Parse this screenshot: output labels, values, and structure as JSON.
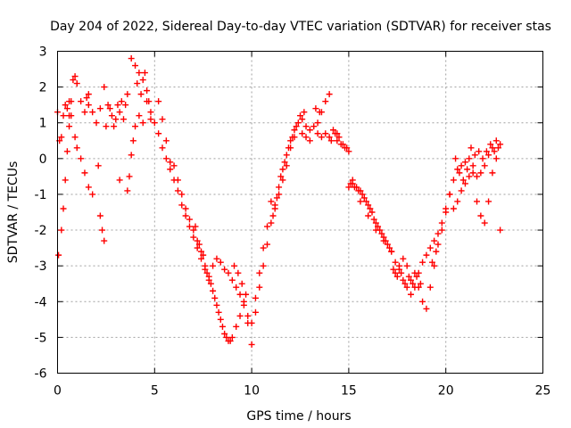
{
  "chart_data": {
    "type": "scatter",
    "title": "Day 204 of 2022, Sidereal Day-to-day VTEC variation (SDTVAR) for receiver stas",
    "xlabel": "GPS time / hours",
    "ylabel": "SDTVAR / TECUs",
    "xlim": [
      0,
      25
    ],
    "ylim": [
      -6,
      3
    ],
    "xticks": [
      0,
      5,
      10,
      15,
      20,
      25
    ],
    "yticks": [
      -6,
      -5,
      -4,
      -3,
      -2,
      -1,
      0,
      1,
      2,
      3
    ],
    "grid": true,
    "marker": "+",
    "series": [
      {
        "name": "stas",
        "color": "#ff0000",
        "points": [
          [
            0.0,
            1.3
          ],
          [
            0.1,
            0.5
          ],
          [
            0.2,
            0.6
          ],
          [
            0.3,
            1.2
          ],
          [
            0.4,
            1.5
          ],
          [
            0.5,
            1.4
          ],
          [
            0.6,
            1.2
          ],
          [
            0.7,
            1.6
          ],
          [
            0.8,
            2.2
          ],
          [
            0.9,
            2.3
          ],
          [
            1.0,
            2.1
          ],
          [
            1.2,
            1.6
          ],
          [
            1.4,
            1.3
          ],
          [
            1.6,
            1.5
          ],
          [
            1.8,
            1.3
          ],
          [
            2.0,
            1.0
          ],
          [
            2.2,
            1.4
          ],
          [
            2.4,
            2.0
          ],
          [
            2.6,
            1.5
          ],
          [
            2.8,
            1.2
          ],
          [
            3.0,
            1.1
          ],
          [
            3.2,
            1.3
          ],
          [
            3.4,
            1.1
          ],
          [
            3.6,
            1.8
          ],
          [
            3.8,
            2.8
          ],
          [
            4.0,
            2.6
          ],
          [
            4.2,
            2.4
          ],
          [
            4.4,
            2.2
          ],
          [
            4.6,
            1.9
          ],
          [
            4.8,
            1.3
          ],
          [
            5.0,
            1.0
          ],
          [
            5.2,
            0.7
          ],
          [
            5.4,
            0.3
          ],
          [
            5.6,
            0.0
          ],
          [
            5.8,
            -0.3
          ],
          [
            6.0,
            -0.6
          ],
          [
            6.2,
            -0.9
          ],
          [
            6.4,
            -1.3
          ],
          [
            6.6,
            -1.6
          ],
          [
            6.8,
            -1.9
          ],
          [
            7.0,
            -2.2
          ],
          [
            7.2,
            -2.5
          ],
          [
            7.4,
            -2.8
          ],
          [
            7.6,
            -3.1
          ],
          [
            7.8,
            -3.4
          ],
          [
            8.0,
            -3.7
          ],
          [
            8.2,
            -4.1
          ],
          [
            8.4,
            -4.5
          ],
          [
            8.6,
            -4.9
          ],
          [
            8.8,
            -5.1
          ],
          [
            9.0,
            -5.0
          ],
          [
            9.2,
            -4.7
          ],
          [
            9.4,
            -4.4
          ],
          [
            9.6,
            -4.0
          ],
          [
            9.8,
            -4.6
          ],
          [
            10.0,
            -5.2
          ],
          [
            10.2,
            -4.3
          ],
          [
            10.4,
            -3.6
          ],
          [
            10.6,
            -3.0
          ],
          [
            10.8,
            -2.4
          ],
          [
            11.0,
            -1.8
          ],
          [
            11.2,
            -1.3
          ],
          [
            11.4,
            -0.8
          ],
          [
            11.6,
            -0.3
          ],
          [
            11.8,
            0.1
          ],
          [
            12.0,
            0.5
          ],
          [
            12.2,
            0.8
          ],
          [
            12.4,
            1.0
          ],
          [
            12.6,
            1.1
          ],
          [
            12.8,
            0.9
          ],
          [
            13.0,
            0.8
          ],
          [
            13.2,
            0.9
          ],
          [
            13.4,
            1.0
          ],
          [
            13.6,
            1.3
          ],
          [
            13.8,
            1.6
          ],
          [
            14.0,
            1.8
          ],
          [
            14.2,
            0.8
          ],
          [
            14.4,
            0.5
          ],
          [
            14.6,
            0.4
          ],
          [
            14.8,
            0.3
          ],
          [
            15.0,
            0.2
          ],
          [
            15.2,
            -0.6
          ],
          [
            15.4,
            -0.8
          ],
          [
            15.6,
            -0.9
          ],
          [
            15.8,
            -1.1
          ],
          [
            16.0,
            -1.3
          ],
          [
            16.2,
            -1.5
          ],
          [
            16.4,
            -1.8
          ],
          [
            16.6,
            -2.0
          ],
          [
            16.8,
            -2.2
          ],
          [
            17.0,
            -2.4
          ],
          [
            17.2,
            -2.6
          ],
          [
            17.4,
            -2.9
          ],
          [
            17.6,
            -3.1
          ],
          [
            17.8,
            -3.4
          ],
          [
            18.0,
            -3.6
          ],
          [
            18.2,
            -3.4
          ],
          [
            18.4,
            -3.2
          ],
          [
            18.6,
            -3.6
          ],
          [
            18.8,
            -4.0
          ],
          [
            19.0,
            -4.2
          ],
          [
            19.2,
            -3.6
          ],
          [
            19.4,
            -3.0
          ],
          [
            19.6,
            -2.4
          ],
          [
            19.8,
            -2.0
          ],
          [
            20.0,
            -1.5
          ],
          [
            20.2,
            -1.0
          ],
          [
            20.4,
            -0.6
          ],
          [
            20.6,
            -0.3
          ],
          [
            20.8,
            -0.2
          ],
          [
            21.0,
            -0.1
          ],
          [
            21.2,
            0.0
          ],
          [
            21.4,
            -0.2
          ],
          [
            21.6,
            -0.5
          ],
          [
            21.8,
            -0.4
          ],
          [
            22.0,
            -0.2
          ],
          [
            22.2,
            0.1
          ],
          [
            22.4,
            0.3
          ],
          [
            22.6,
            0.5
          ],
          [
            22.8,
            0.4
          ],
          [
            0.05,
            -2.7
          ],
          [
            0.2,
            -2.0
          ],
          [
            0.3,
            -1.4
          ],
          [
            0.4,
            -0.6
          ],
          [
            0.5,
            0.2
          ],
          [
            0.6,
            0.9
          ],
          [
            0.9,
            0.6
          ],
          [
            1.0,
            0.3
          ],
          [
            1.2,
            0.0
          ],
          [
            1.4,
            -0.4
          ],
          [
            1.6,
            -0.8
          ],
          [
            1.8,
            -1.0
          ],
          [
            2.2,
            -1.6
          ],
          [
            2.3,
            -2.0
          ],
          [
            2.4,
            -2.3
          ],
          [
            2.1,
            -0.2
          ],
          [
            3.2,
            -0.6
          ],
          [
            3.6,
            -0.9
          ],
          [
            3.7,
            -0.5
          ],
          [
            3.8,
            0.1
          ],
          [
            3.9,
            0.5
          ],
          [
            4.0,
            0.9
          ],
          [
            4.2,
            1.2
          ],
          [
            4.4,
            1.0
          ],
          [
            4.6,
            1.6
          ],
          [
            4.8,
            1.1
          ],
          [
            5.2,
            1.6
          ],
          [
            5.4,
            1.1
          ],
          [
            5.6,
            0.5
          ],
          [
            5.8,
            -0.1
          ],
          [
            6.0,
            -0.2
          ],
          [
            6.2,
            -0.6
          ],
          [
            6.4,
            -1.0
          ],
          [
            6.6,
            -1.4
          ],
          [
            6.8,
            -1.7
          ],
          [
            7.0,
            -2.0
          ],
          [
            7.2,
            -2.3
          ],
          [
            7.4,
            -2.6
          ],
          [
            7.6,
            -3.0
          ],
          [
            7.8,
            -3.3
          ],
          [
            8.0,
            -3.0
          ],
          [
            8.2,
            -2.8
          ],
          [
            8.4,
            -2.9
          ],
          [
            8.6,
            -3.1
          ],
          [
            8.8,
            -3.2
          ],
          [
            9.0,
            -3.4
          ],
          [
            9.2,
            -3.6
          ],
          [
            9.4,
            -3.8
          ],
          [
            9.6,
            -4.1
          ],
          [
            9.8,
            -4.4
          ],
          [
            10.0,
            -4.6
          ],
          [
            10.2,
            -3.9
          ],
          [
            10.4,
            -3.2
          ],
          [
            10.6,
            -2.5
          ],
          [
            10.8,
            -1.9
          ],
          [
            11.0,
            -1.2
          ],
          [
            11.2,
            -1.4
          ],
          [
            11.4,
            -1.0
          ],
          [
            11.6,
            -0.6
          ],
          [
            11.8,
            -0.2
          ],
          [
            12.0,
            0.3
          ],
          [
            12.2,
            0.6
          ],
          [
            12.6,
            0.7
          ],
          [
            12.8,
            0.6
          ],
          [
            13.0,
            0.5
          ],
          [
            13.4,
            0.7
          ],
          [
            13.6,
            0.6
          ],
          [
            13.8,
            0.7
          ],
          [
            14.0,
            0.6
          ],
          [
            14.4,
            0.7
          ],
          [
            15.0,
            -0.8
          ],
          [
            15.2,
            -0.7
          ],
          [
            15.6,
            -1.2
          ],
          [
            16.0,
            -1.6
          ],
          [
            16.4,
            -2.0
          ],
          [
            16.8,
            -2.3
          ],
          [
            17.2,
            -2.6
          ],
          [
            17.4,
            -3.2
          ],
          [
            17.6,
            -3.0
          ],
          [
            17.8,
            -2.8
          ],
          [
            18.0,
            -3.0
          ],
          [
            18.2,
            -3.8
          ],
          [
            18.4,
            -3.6
          ],
          [
            18.6,
            -3.2
          ],
          [
            18.8,
            -2.9
          ],
          [
            19.0,
            -2.7
          ],
          [
            19.2,
            -2.5
          ],
          [
            19.4,
            -2.3
          ],
          [
            19.6,
            -2.1
          ],
          [
            19.8,
            -1.8
          ],
          [
            20.0,
            -1.4
          ],
          [
            20.2,
            -1.0
          ],
          [
            20.4,
            -1.4
          ],
          [
            20.6,
            -1.2
          ],
          [
            20.8,
            -0.9
          ],
          [
            21.0,
            -0.7
          ],
          [
            21.2,
            -0.5
          ],
          [
            21.4,
            -0.4
          ],
          [
            21.6,
            -1.2
          ],
          [
            21.8,
            -1.6
          ],
          [
            22.0,
            -1.8
          ],
          [
            22.2,
            -1.2
          ],
          [
            22.4,
            -0.4
          ],
          [
            22.6,
            0.0
          ],
          [
            22.8,
            -2.0
          ],
          [
            0.6,
            1.6
          ],
          [
            0.7,
            1.2
          ],
          [
            1.5,
            1.7
          ],
          [
            1.6,
            1.8
          ],
          [
            2.5,
            0.9
          ],
          [
            2.7,
            1.4
          ],
          [
            2.9,
            0.9
          ],
          [
            3.1,
            1.5
          ],
          [
            3.3,
            1.6
          ],
          [
            3.5,
            1.5
          ],
          [
            4.1,
            2.1
          ],
          [
            4.3,
            1.8
          ],
          [
            4.5,
            2.4
          ],
          [
            4.7,
            1.6
          ],
          [
            9.1,
            -3.0
          ],
          [
            9.3,
            -3.2
          ],
          [
            9.5,
            -3.5
          ],
          [
            9.7,
            -3.8
          ],
          [
            12.5,
            1.2
          ],
          [
            12.7,
            1.3
          ],
          [
            13.3,
            1.4
          ],
          [
            13.5,
            1.3
          ],
          [
            19.3,
            -2.9
          ],
          [
            19.5,
            -2.6
          ],
          [
            20.5,
            0.0
          ],
          [
            20.7,
            -0.4
          ],
          [
            20.9,
            -0.6
          ],
          [
            21.1,
            -0.3
          ],
          [
            21.3,
            0.3
          ],
          [
            21.5,
            0.1
          ],
          [
            21.7,
            0.2
          ],
          [
            21.9,
            0.0
          ],
          [
            22.1,
            0.2
          ],
          [
            22.3,
            0.4
          ],
          [
            22.5,
            0.2
          ],
          [
            22.7,
            0.3
          ],
          [
            18.1,
            -3.3
          ],
          [
            18.3,
            -3.5
          ],
          [
            18.5,
            -3.3
          ],
          [
            18.7,
            -3.5
          ],
          [
            17.3,
            -3.1
          ],
          [
            17.5,
            -3.3
          ],
          [
            17.7,
            -3.2
          ],
          [
            17.9,
            -3.5
          ],
          [
            7.1,
            -1.9
          ],
          [
            7.3,
            -2.4
          ],
          [
            7.5,
            -2.7
          ],
          [
            7.7,
            -3.2
          ],
          [
            7.9,
            -3.5
          ],
          [
            8.1,
            -3.9
          ],
          [
            8.3,
            -4.3
          ],
          [
            8.5,
            -4.7
          ],
          [
            8.7,
            -5.0
          ],
          [
            8.9,
            -5.1
          ],
          [
            11.1,
            -1.6
          ],
          [
            11.3,
            -1.1
          ],
          [
            11.5,
            -0.5
          ],
          [
            11.7,
            -0.1
          ],
          [
            11.9,
            0.3
          ],
          [
            12.1,
            0.6
          ],
          [
            12.3,
            0.9
          ],
          [
            14.1,
            0.5
          ],
          [
            14.3,
            0.7
          ],
          [
            14.5,
            0.6
          ],
          [
            14.7,
            0.4
          ],
          [
            14.9,
            0.3
          ],
          [
            15.1,
            -0.7
          ],
          [
            15.3,
            -0.8
          ],
          [
            15.5,
            -0.9
          ],
          [
            15.7,
            -1.0
          ],
          [
            15.9,
            -1.2
          ],
          [
            16.1,
            -1.4
          ],
          [
            16.3,
            -1.7
          ],
          [
            16.5,
            -1.9
          ],
          [
            16.7,
            -2.1
          ],
          [
            16.9,
            -2.3
          ],
          [
            17.1,
            -2.5
          ]
        ]
      }
    ]
  }
}
